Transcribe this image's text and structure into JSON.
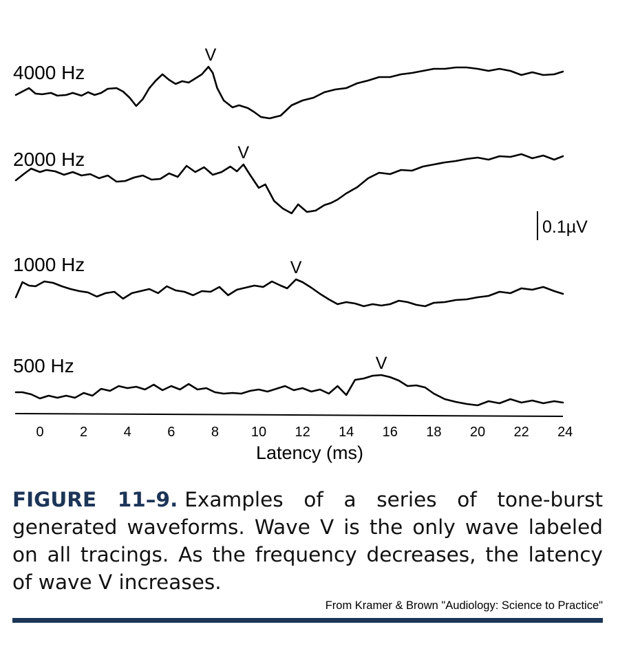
{
  "chart_data": {
    "type": "line",
    "xlabel": "Latency (ms)",
    "x_ticks": [
      "0",
      "2",
      "4",
      "6",
      "8",
      "10",
      "12",
      "14",
      "16",
      "18",
      "20",
      "22",
      "24"
    ],
    "xlim": [
      -1.1,
      24
    ],
    "scale_bar_label": "0.1µV",
    "peak_marker": "V",
    "series": [
      {
        "name": "4000 Hz",
        "wave_v_latency_ms": 7.8,
        "x": [
          -1.1,
          -0.8,
          -0.5,
          -0.2,
          0.1,
          0.5,
          0.8,
          1.2,
          1.5,
          1.9,
          2.2,
          2.5,
          2.8,
          3.1,
          3.5,
          3.8,
          4.1,
          4.4,
          4.7,
          5.0,
          5.3,
          5.6,
          5.9,
          6.2,
          6.5,
          6.8,
          7.1,
          7.4,
          7.7,
          7.9,
          8.1,
          8.4,
          8.8,
          9.1,
          9.5,
          9.8,
          10.1,
          10.5,
          11.0,
          11.5,
          12.0,
          12.5,
          13.0,
          13.5,
          14.0,
          14.5,
          15.0,
          15.5,
          16.0,
          16.5,
          17.0,
          17.5,
          18.0,
          18.5,
          19.0,
          19.5,
          20.0,
          20.5,
          21.0,
          21.5,
          22.0,
          22.5,
          23.0,
          23.5,
          23.9
        ],
        "y": [
          0.0,
          0.5,
          1.0,
          0.2,
          0.1,
          0.3,
          -0.1,
          0.0,
          0.3,
          -0.1,
          0.4,
          0.0,
          0.3,
          0.9,
          1.0,
          0.5,
          -0.4,
          -1.6,
          -0.6,
          1.0,
          2.1,
          3.0,
          2.2,
          1.6,
          2.0,
          1.8,
          2.4,
          3.0,
          4.1,
          3.2,
          1.0,
          -0.8,
          -1.8,
          -1.5,
          -1.9,
          -2.5,
          -3.2,
          -3.4,
          -3.0,
          -1.5,
          -0.8,
          -0.4,
          0.4,
          0.8,
          1.0,
          1.7,
          2.1,
          2.6,
          2.6,
          3.0,
          3.2,
          3.5,
          3.8,
          3.8,
          4.0,
          4.0,
          3.8,
          3.5,
          3.8,
          3.5,
          2.9,
          3.3,
          2.9,
          3.0,
          3.4
        ]
      },
      {
        "name": "2000 Hz",
        "wave_v_latency_ms": 9.3,
        "x": [
          -1.1,
          -0.7,
          -0.4,
          0.0,
          0.3,
          0.7,
          1.1,
          1.5,
          1.9,
          2.3,
          2.7,
          3.1,
          3.5,
          3.9,
          4.3,
          4.7,
          5.1,
          5.5,
          5.9,
          6.3,
          6.7,
          7.1,
          7.5,
          7.9,
          8.3,
          8.7,
          9.0,
          9.3,
          9.6,
          10.0,
          10.3,
          10.7,
          11.1,
          11.5,
          11.8,
          12.2,
          12.6,
          13.0,
          13.3,
          13.6,
          14.0,
          14.5,
          15.0,
          15.5,
          16.0,
          16.5,
          17.0,
          17.5,
          18.0,
          18.5,
          19.0,
          19.5,
          20.0,
          20.5,
          21.0,
          21.5,
          22.0,
          22.5,
          23.0,
          23.5,
          23.9
        ],
        "y": [
          0.0,
          1.0,
          1.7,
          1.2,
          1.5,
          1.3,
          0.8,
          1.2,
          0.7,
          0.9,
          0.3,
          0.7,
          -0.2,
          -0.1,
          0.4,
          0.7,
          0.1,
          0.2,
          1.0,
          0.5,
          2.1,
          1.2,
          1.9,
          0.8,
          1.2,
          2.0,
          1.3,
          2.3,
          0.8,
          -1.1,
          -0.6,
          -3.0,
          -4.1,
          -4.8,
          -3.5,
          -4.6,
          -4.4,
          -3.6,
          -3.3,
          -2.8,
          -1.9,
          -1.0,
          0.3,
          1.1,
          0.9,
          1.5,
          1.4,
          2.0,
          2.3,
          2.6,
          2.8,
          3.1,
          3.3,
          3.0,
          3.5,
          3.4,
          3.8,
          3.2,
          3.6,
          3.0,
          3.5
        ]
      },
      {
        "name": "1000 Hz",
        "wave_v_latency_ms": 11.7,
        "x": [
          -1.1,
          -0.8,
          -0.5,
          -0.2,
          0.2,
          0.6,
          1.0,
          1.4,
          1.8,
          2.2,
          2.6,
          3.0,
          3.4,
          3.8,
          4.2,
          4.6,
          5.0,
          5.4,
          5.8,
          6.2,
          6.6,
          7.0,
          7.4,
          7.8,
          8.2,
          8.6,
          9.0,
          9.4,
          9.8,
          10.2,
          10.6,
          11.0,
          11.3,
          11.7,
          12.0,
          12.4,
          12.8,
          13.2,
          13.6,
          14.0,
          14.4,
          14.8,
          15.2,
          15.6,
          16.0,
          16.4,
          16.8,
          17.2,
          17.6,
          18.0,
          18.5,
          19.0,
          19.5,
          20.0,
          20.5,
          21.0,
          21.5,
          22.0,
          22.5,
          23.0,
          23.5,
          23.9
        ],
        "y": [
          -0.5,
          1.7,
          1.2,
          1.1,
          1.8,
          1.6,
          1.1,
          0.7,
          0.4,
          0.2,
          -0.4,
          0.1,
          0.3,
          -0.7,
          0.1,
          0.4,
          0.7,
          0.1,
          1.1,
          0.5,
          0.3,
          -0.2,
          0.4,
          0.3,
          1.0,
          -0.2,
          0.6,
          0.9,
          1.2,
          1.0,
          1.8,
          1.2,
          0.8,
          2.1,
          1.7,
          0.9,
          0.0,
          -0.8,
          -1.5,
          -1.2,
          -1.4,
          -1.8,
          -1.5,
          -1.7,
          -1.5,
          -1.0,
          -1.2,
          -1.6,
          -1.8,
          -1.3,
          -1.2,
          -0.9,
          -0.8,
          -0.5,
          -0.3,
          0.3,
          0.1,
          0.8,
          0.6,
          1.0,
          0.4,
          0.0
        ]
      },
      {
        "name": "500 Hz",
        "wave_v_latency_ms": 15.6,
        "x": [
          -1.1,
          -0.8,
          -0.4,
          0.0,
          0.4,
          0.8,
          1.2,
          1.6,
          2.0,
          2.4,
          2.8,
          3.2,
          3.6,
          4.0,
          4.4,
          4.8,
          5.2,
          5.6,
          6.0,
          6.4,
          6.8,
          7.2,
          7.6,
          8.0,
          8.4,
          8.8,
          9.2,
          9.6,
          10.0,
          10.4,
          10.8,
          11.2,
          11.6,
          12.0,
          12.4,
          12.8,
          13.2,
          13.6,
          14.0,
          14.4,
          14.8,
          15.2,
          15.6,
          16.0,
          16.4,
          16.8,
          17.2,
          17.6,
          18.0,
          18.5,
          19.0,
          19.5,
          20.0,
          20.5,
          21.0,
          21.5,
          22.0,
          22.5,
          23.0,
          23.5,
          23.9
        ],
        "y": [
          0.0,
          0.0,
          -0.3,
          -0.9,
          -0.5,
          -0.8,
          -0.5,
          -0.8,
          -0.1,
          -0.5,
          0.5,
          0.2,
          0.9,
          0.6,
          0.8,
          0.4,
          1.1,
          0.3,
          0.9,
          0.4,
          1.2,
          0.4,
          0.6,
          0.0,
          -0.2,
          -0.1,
          -0.2,
          0.2,
          0.4,
          0.1,
          0.5,
          0.9,
          0.3,
          0.6,
          0.1,
          0.4,
          -0.2,
          0.9,
          -0.4,
          1.8,
          2.0,
          2.4,
          2.5,
          2.2,
          1.7,
          0.9,
          1.0,
          0.7,
          -0.2,
          -1.0,
          -1.4,
          -1.7,
          -1.9,
          -1.3,
          -1.6,
          -1.0,
          -1.5,
          -1.2,
          -1.6,
          -1.3,
          -1.5
        ]
      }
    ]
  },
  "caption": {
    "label": "FIGURE 11–9.",
    "text": "Examples of a series of tone-burst generated waveforms. Wave V is the only wave labeled on all tracings. As the frequency decreases, the latency of wave V increases."
  },
  "credit": "From Kramer & Brown \"Audiology: Science to Practice\"",
  "colors": {
    "trace": "#000000",
    "caption_label": "#1c3558",
    "rule": "#1c3558"
  }
}
